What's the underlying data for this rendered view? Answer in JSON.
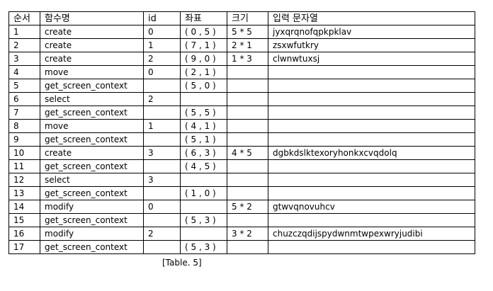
{
  "table": {
    "headers": {
      "seq": "순서",
      "func": "함수명",
      "id": "id",
      "coord": "좌표",
      "size": "크기",
      "input": "입력 문자열"
    },
    "rows": [
      {
        "seq": "1",
        "func": "create",
        "id": "0",
        "coord": "( 0 , 5 )",
        "size": "5 * 5",
        "input": "jyxqrqnofqpkpklav"
      },
      {
        "seq": "2",
        "func": "create",
        "id": "1",
        "coord": "( 7 , 1 )",
        "size": "2 * 1",
        "input": "zsxwfutkry"
      },
      {
        "seq": "3",
        "func": "create",
        "id": "2",
        "coord": "( 9 , 0 )",
        "size": "1 * 3",
        "input": "clwnwtuxsj"
      },
      {
        "seq": "4",
        "func": "move",
        "id": "0",
        "coord": "( 2 , 1 )",
        "size": "",
        "input": ""
      },
      {
        "seq": "5",
        "func": "get_screen_context",
        "id": "",
        "coord": "( 5 , 0 )",
        "size": "",
        "input": ""
      },
      {
        "seq": "6",
        "func": "select",
        "id": "2",
        "coord": "",
        "size": "",
        "input": ""
      },
      {
        "seq": "7",
        "func": "get_screen_context",
        "id": "",
        "coord": "( 5 , 5 )",
        "size": "",
        "input": ""
      },
      {
        "seq": "8",
        "func": "move",
        "id": "1",
        "coord": "( 4 , 1 )",
        "size": "",
        "input": ""
      },
      {
        "seq": "9",
        "func": "get_screen_context",
        "id": "",
        "coord": "( 5 , 1 )",
        "size": "",
        "input": ""
      },
      {
        "seq": "10",
        "func": "create",
        "id": "3",
        "coord": "( 6 , 3 )",
        "size": "4 * 5",
        "input": "dgbkdslktexoryhonkxcvqdolq"
      },
      {
        "seq": "11",
        "func": "get_screen_context",
        "id": "",
        "coord": "( 4 , 5 )",
        "size": "",
        "input": ""
      },
      {
        "seq": "12",
        "func": "select",
        "id": "3",
        "coord": "",
        "size": "",
        "input": ""
      },
      {
        "seq": "13",
        "func": "get_screen_context",
        "id": "",
        "coord": "( 1 , 0 )",
        "size": "",
        "input": ""
      },
      {
        "seq": "14",
        "func": "modify",
        "id": "0",
        "coord": "",
        "size": "5 * 2",
        "input": "gtwvqnovuhcv"
      },
      {
        "seq": "15",
        "func": "get_screen_context",
        "id": "",
        "coord": "( 5 , 3 )",
        "size": "",
        "input": ""
      },
      {
        "seq": "16",
        "func": "modify",
        "id": "2",
        "coord": "",
        "size": "3 * 2",
        "input": "chuzczqdijspydwnmtwpexwryjudibi"
      },
      {
        "seq": "17",
        "func": "get_screen_context",
        "id": "",
        "coord": "( 5 , 3 )",
        "size": "",
        "input": ""
      }
    ]
  },
  "caption": "[Table. 5]"
}
